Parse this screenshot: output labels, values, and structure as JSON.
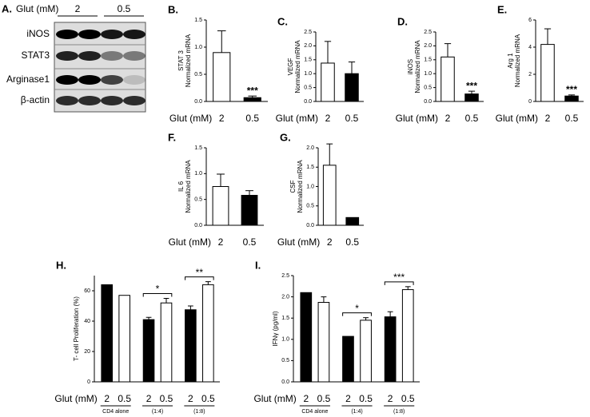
{
  "blot": {
    "label": "A.",
    "xlabel": "Glut (mM)",
    "lanes": [
      "2",
      "0.5"
    ],
    "rows": [
      "iNOS",
      "STAT3",
      "Arginase1",
      "β-actin"
    ]
  },
  "chart_data": [
    {
      "type": "bar",
      "label": "B.",
      "ylabel": [
        "STAT 3",
        "Normalized mRNA"
      ],
      "xlabel": "Glut (mM)",
      "categories": [
        "2",
        "0.5"
      ],
      "values": [
        0.9,
        0.07
      ],
      "errors": [
        0.4,
        0.03
      ],
      "colors": [
        "#ffffff",
        "#000000"
      ],
      "significance": [
        null,
        "***"
      ],
      "ylim": [
        0,
        1.5
      ],
      "yticks": [
        {
          "value": 0,
          "label": "0.0"
        },
        0.5,
        {
          "value": 1,
          "label": "1.0"
        },
        1.5
      ]
    },
    {
      "type": "bar",
      "label": "C.",
      "ylabel": [
        "VEGF",
        "Normalized mRNA"
      ],
      "xlabel": "Glut (mM)",
      "categories": [
        "2",
        "0.5"
      ],
      "values": [
        1.38,
        1.0
      ],
      "errors": [
        0.78,
        0.42
      ],
      "colors": [
        "#ffffff",
        "#000000"
      ],
      "ylim": [
        0,
        2.5
      ],
      "yticks": [
        {
          "value": 0,
          "label": "0.0"
        },
        0.5,
        {
          "value": 1,
          "label": "1.0"
        },
        1.5,
        {
          "value": 2,
          "label": "2.0"
        },
        2.5
      ]
    },
    {
      "type": "bar",
      "label": "D.",
      "ylabel": [
        "iNOS",
        "Normalized mRNA"
      ],
      "xlabel": "Glut (mM)",
      "categories": [
        "2",
        "0.5"
      ],
      "values": [
        1.6,
        0.27
      ],
      "errors": [
        0.48,
        0.1
      ],
      "colors": [
        "#ffffff",
        "#000000"
      ],
      "significance": [
        null,
        "***"
      ],
      "ylim": [
        0,
        2.5
      ],
      "yticks": [
        {
          "value": 0,
          "label": "0.0"
        },
        0.5,
        {
          "value": 1,
          "label": "1.0"
        },
        1.5,
        {
          "value": 2,
          "label": "2.0"
        },
        2.5
      ]
    },
    {
      "type": "bar",
      "label": "E.",
      "ylabel": [
        "Arg 1",
        "Normalized mRNA"
      ],
      "xlabel": "Glut (mM)",
      "categories": [
        "2",
        "0.5"
      ],
      "values": [
        4.2,
        0.4
      ],
      "errors": [
        1.15,
        0.08
      ],
      "colors": [
        "#ffffff",
        "#000000"
      ],
      "significance": [
        null,
        "***"
      ],
      "ylim": [
        0,
        6
      ],
      "yticks": [
        0,
        2,
        4,
        6
      ]
    },
    {
      "type": "bar",
      "label": "F.",
      "ylabel": [
        "IL 6",
        "Normalized mRNA"
      ],
      "xlabel": "Glut (mM)",
      "categories": [
        "2",
        "0.5"
      ],
      "values": [
        0.75,
        0.58
      ],
      "errors": [
        0.24,
        0.09
      ],
      "colors": [
        "#ffffff",
        "#000000"
      ],
      "ylim": [
        0,
        1.5
      ],
      "yticks": [
        {
          "value": 0,
          "label": "0.0"
        },
        0.5,
        {
          "value": 1,
          "label": "1.0"
        },
        1.5
      ]
    },
    {
      "type": "bar",
      "label": "G.",
      "ylabel": [
        "CSF",
        "Normalized mRNA"
      ],
      "xlabel": "Glut (mM)",
      "categories": [
        "2",
        "0.5"
      ],
      "values": [
        1.55,
        0.2
      ],
      "errors": [
        0.55,
        null
      ],
      "colors": [
        "#ffffff",
        "#000000"
      ],
      "ylim": [
        0,
        2
      ],
      "yticks": [
        {
          "value": 0,
          "label": "0.0"
        },
        0.5,
        {
          "value": 1,
          "label": "1.0"
        },
        1.5,
        {
          "value": 2,
          "label": "2.0"
        }
      ]
    },
    {
      "type": "grouped-bar",
      "label": "H.",
      "ylabel": [
        "T- cell Proliferation (%)"
      ],
      "xlabel": "Glut (mM)",
      "categories": [
        "2",
        "0.5",
        "2",
        "0.5",
        "2",
        "0.5"
      ],
      "groups": [
        "CD4 alone",
        "(1:4)",
        "(1:8)"
      ],
      "values": [
        64,
        57,
        41,
        52,
        47.5,
        64
      ],
      "errors": [
        null,
        null,
        1.5,
        3,
        2.5,
        2
      ],
      "colors": [
        "#000000",
        "#ffffff",
        "#000000",
        "#ffffff",
        "#000000",
        "#ffffff"
      ],
      "significance": [
        null,
        "*",
        "**"
      ],
      "ylim": [
        0,
        70
      ],
      "yticks": [
        0,
        20,
        40,
        60
      ]
    },
    {
      "type": "grouped-bar",
      "label": "I.",
      "ylabel": [
        "IFNγ (pg/ml)"
      ],
      "xlabel": "Glut (mM)",
      "categories": [
        "2",
        "0.5",
        "2",
        "0.5",
        "2",
        "0.5"
      ],
      "groups": [
        "CD4 alone",
        "(1:4)",
        "(1:8)"
      ],
      "values": [
        2.1,
        1.87,
        1.07,
        1.45,
        1.53,
        2.17
      ],
      "errors": [
        null,
        0.13,
        null,
        0.06,
        0.12,
        0.07
      ],
      "colors": [
        "#000000",
        "#ffffff",
        "#000000",
        "#ffffff",
        "#000000",
        "#ffffff"
      ],
      "significance": [
        null,
        "*",
        "***"
      ],
      "ylim": [
        0,
        2.5
      ],
      "yticks": [
        {
          "value": 0,
          "label": "0.0"
        },
        0.5,
        {
          "value": 1,
          "label": "1.0"
        },
        1.5,
        {
          "value": 2,
          "label": "2.0"
        },
        2.5
      ]
    }
  ]
}
